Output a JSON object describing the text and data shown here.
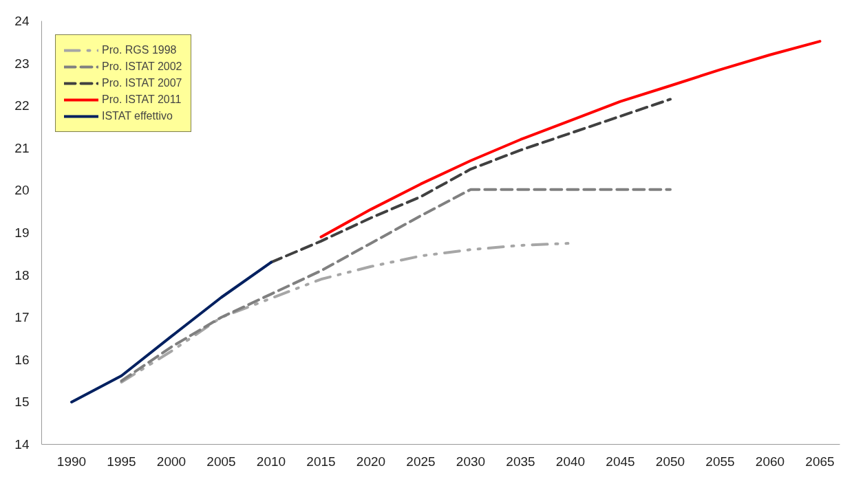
{
  "chart_data": {
    "type": "line",
    "categories": [
      "1990",
      "1995",
      "2000",
      "2005",
      "2010",
      "2015",
      "2020",
      "2025",
      "2030",
      "2035",
      "2040",
      "2045",
      "2050",
      "2055",
      "2060",
      "2065"
    ],
    "ylim": [
      14,
      24
    ],
    "yticks": [
      14,
      15,
      16,
      17,
      18,
      19,
      20,
      21,
      22,
      23,
      24
    ],
    "grid": false,
    "legend": "top left",
    "series": [
      {
        "name": "Pro. RGS 1998",
        "color": "#a6a6a6",
        "line_style": "dotted",
        "values": [
          null,
          15.47,
          16.2,
          17.0,
          17.45,
          17.9,
          18.2,
          18.45,
          18.6,
          18.7,
          18.75,
          null,
          null,
          null,
          null,
          null
        ]
      },
      {
        "name": "Pro. ISTAT 2002",
        "color": "#808080",
        "line_style": "dashed",
        "values": [
          null,
          15.5,
          16.3,
          17.0,
          17.55,
          18.1,
          18.75,
          19.4,
          20.02,
          20.02,
          20.02,
          20.02,
          20.02,
          null,
          null,
          null
        ]
      },
      {
        "name": "Pro. ISTAT 2007",
        "color": "#404040",
        "line_style": "dashed",
        "values": [
          null,
          null,
          null,
          null,
          18.3,
          18.8,
          19.35,
          19.85,
          20.5,
          20.95,
          21.35,
          21.75,
          22.15,
          null,
          null,
          null
        ]
      },
      {
        "name": "Pro. ISTAT 2011",
        "color": "#ff0000",
        "line_style": "solid",
        "values": [
          null,
          null,
          null,
          null,
          null,
          18.9,
          19.55,
          20.15,
          20.7,
          21.2,
          21.65,
          22.1,
          22.47,
          22.85,
          23.2,
          23.52
        ]
      },
      {
        "name": "ISTAT effettivo",
        "color": "#002060",
        "line_style": "solid",
        "values": [
          15.0,
          15.62,
          16.55,
          17.47,
          18.3,
          null,
          null,
          null,
          null,
          null,
          null,
          null,
          null,
          null,
          null,
          null
        ]
      }
    ]
  }
}
